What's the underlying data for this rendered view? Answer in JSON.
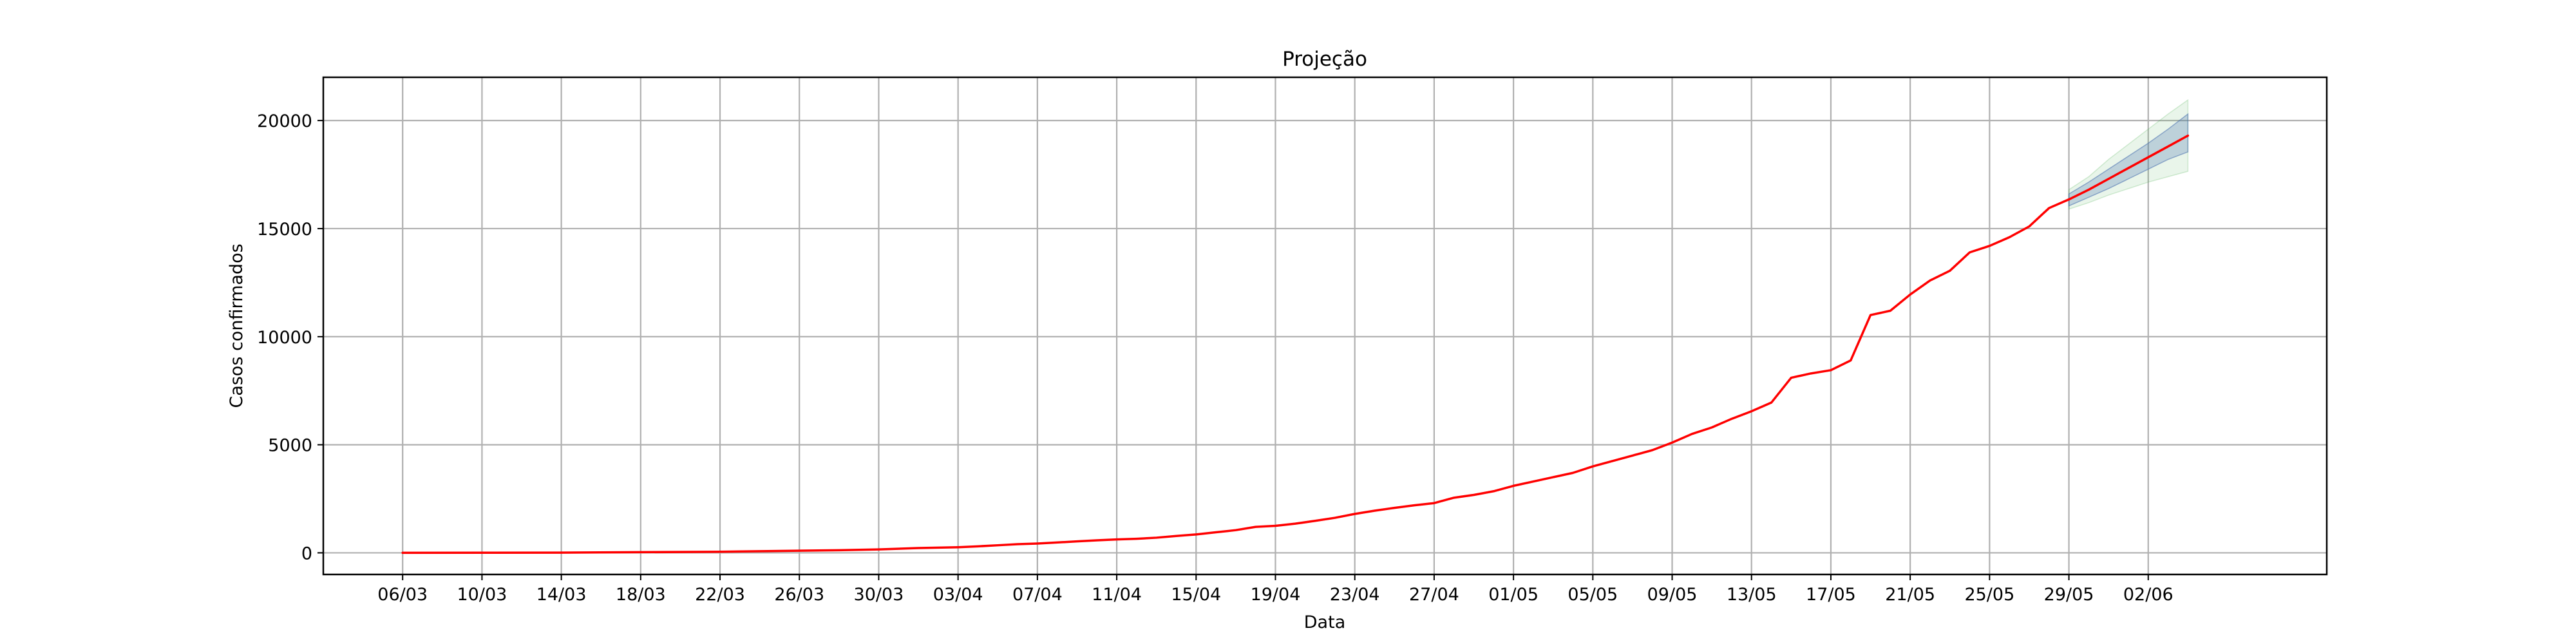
{
  "chart_data": {
    "type": "line",
    "title": "Projeção",
    "xlabel": "Data",
    "ylabel": "Casos confirmados",
    "grid": true,
    "x_tick_labels": [
      "06/03",
      "10/03",
      "14/03",
      "18/03",
      "22/03",
      "26/03",
      "30/03",
      "03/04",
      "07/04",
      "11/04",
      "15/04",
      "19/04",
      "23/04",
      "27/04",
      "01/05",
      "05/05",
      "09/05",
      "13/05",
      "17/05",
      "21/05",
      "25/05",
      "29/05",
      "02/06"
    ],
    "y_ticks": [
      0,
      5000,
      10000,
      15000,
      20000
    ],
    "ylim": [
      -1000,
      22000
    ],
    "xlim": [
      "02/03",
      "11/06"
    ],
    "series": [
      {
        "color": "#ff0000",
        "points": [
          [
            "06/03",
            1
          ],
          [
            "10/03",
            5
          ],
          [
            "14/03",
            10
          ],
          [
            "18/03",
            30
          ],
          [
            "22/03",
            50
          ],
          [
            "26/03",
            100
          ],
          [
            "28/03",
            120
          ],
          [
            "30/03",
            160
          ],
          [
            "01/04",
            220
          ],
          [
            "03/04",
            260
          ],
          [
            "04/04",
            300
          ],
          [
            "05/04",
            350
          ],
          [
            "06/04",
            400
          ],
          [
            "07/04",
            430
          ],
          [
            "09/04",
            530
          ],
          [
            "10/04",
            580
          ],
          [
            "11/04",
            620
          ],
          [
            "12/04",
            650
          ],
          [
            "13/04",
            700
          ],
          [
            "14/04",
            780
          ],
          [
            "15/04",
            850
          ],
          [
            "16/04",
            950
          ],
          [
            "17/04",
            1050
          ],
          [
            "18/04",
            1200
          ],
          [
            "19/04",
            1250
          ],
          [
            "20/04",
            1350
          ],
          [
            "21/04",
            1480
          ],
          [
            "22/04",
            1620
          ],
          [
            "23/04",
            1800
          ],
          [
            "24/04",
            1950
          ],
          [
            "25/04",
            2080
          ],
          [
            "26/04",
            2200
          ],
          [
            "27/04",
            2300
          ],
          [
            "28/04",
            2550
          ],
          [
            "29/04",
            2680
          ],
          [
            "30/04",
            2850
          ],
          [
            "01/05",
            3100
          ],
          [
            "02/05",
            3300
          ],
          [
            "03/05",
            3500
          ],
          [
            "04/05",
            3700
          ],
          [
            "05/05",
            4000
          ],
          [
            "06/05",
            4250
          ],
          [
            "07/05",
            4500
          ],
          [
            "08/05",
            4750
          ],
          [
            "09/05",
            5100
          ],
          [
            "10/05",
            5500
          ],
          [
            "11/05",
            5800
          ],
          [
            "12/05",
            6200
          ],
          [
            "13/05",
            6550
          ],
          [
            "14/05",
            6950
          ],
          [
            "15/05",
            8100
          ],
          [
            "16/05",
            8300
          ],
          [
            "17/05",
            8450
          ],
          [
            "18/05",
            8900
          ],
          [
            "19/05",
            11000
          ],
          [
            "20/05",
            11200
          ],
          [
            "21/05",
            11950
          ],
          [
            "22/05",
            12600
          ],
          [
            "23/05",
            13050
          ],
          [
            "24/05",
            13900
          ],
          [
            "25/05",
            14200
          ],
          [
            "26/05",
            14600
          ],
          [
            "27/05",
            15100
          ],
          [
            "28/05",
            15950
          ],
          [
            "29/05",
            16350
          ]
        ]
      },
      {
        "color": "#ff0000",
        "projection": true,
        "points": [
          [
            "29/05",
            16350
          ],
          [
            "30/05",
            16800
          ],
          [
            "31/05",
            17300
          ],
          [
            "01/06",
            17800
          ],
          [
            "02/06",
            18300
          ],
          [
            "03/06",
            18800
          ],
          [
            "04/06",
            19300
          ]
        ]
      }
    ],
    "bands": [
      {
        "color": "#4caf50",
        "opacity": 0.12,
        "points": [
          [
            "29/05",
            15900,
            16800
          ],
          [
            "30/05",
            16200,
            17400
          ],
          [
            "31/05",
            16550,
            18200
          ],
          [
            "01/06",
            16850,
            18900
          ],
          [
            "02/06",
            17150,
            19600
          ],
          [
            "03/06",
            17400,
            20300
          ],
          [
            "04/06",
            17650,
            20950
          ]
        ]
      },
      {
        "color": "#4c72b0",
        "opacity": 0.28,
        "points": [
          [
            "29/05",
            16050,
            16600
          ],
          [
            "30/05",
            16450,
            17150
          ],
          [
            "31/05",
            16850,
            17750
          ],
          [
            "01/06",
            17300,
            18350
          ],
          [
            "02/06",
            17750,
            18950
          ],
          [
            "03/06",
            18200,
            19600
          ],
          [
            "04/06",
            18550,
            20300
          ]
        ]
      }
    ]
  }
}
